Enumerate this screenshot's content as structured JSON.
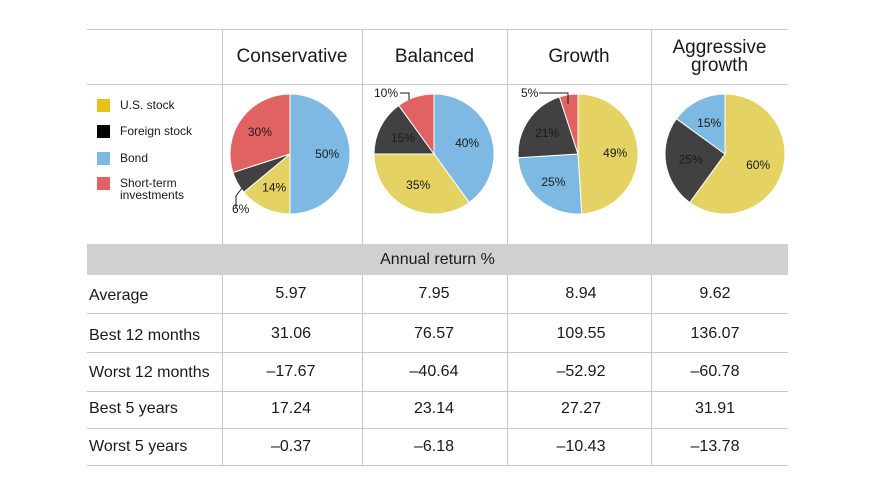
{
  "chart_data": {
    "type": "pie",
    "columns": [
      "Conservative",
      "Balanced",
      "Growth",
      "Aggressive\ngrowth"
    ],
    "legend": [
      {
        "name": "U.S. stock",
        "color": "#e4d262"
      },
      {
        "name": "Foreign stock",
        "color": "#000000"
      },
      {
        "name": "Bond",
        "color": "#7db9e2"
      },
      {
        "name": "Short-term\ninvestments",
        "color": "#e06262"
      }
    ],
    "slice_colors": {
      "us": "#e4d262",
      "foreign": "#414141",
      "bond": "#7db9e2",
      "short": "#e06262"
    },
    "pies": [
      {
        "name": "Conservative",
        "slices": [
          {
            "key": "bond",
            "value": 50,
            "label": "50%"
          },
          {
            "key": "us",
            "value": 14,
            "label": "14%"
          },
          {
            "key": "foreign",
            "value": 6,
            "label": "6%"
          },
          {
            "key": "short",
            "value": 30,
            "label": "30%"
          }
        ]
      },
      {
        "name": "Balanced",
        "slices": [
          {
            "key": "bond",
            "value": 40,
            "label": "40%"
          },
          {
            "key": "us",
            "value": 35,
            "label": "35%"
          },
          {
            "key": "foreign",
            "value": 15,
            "label": "15%"
          },
          {
            "key": "short",
            "value": 10,
            "label": "10%"
          }
        ]
      },
      {
        "name": "Growth",
        "slices": [
          {
            "key": "us",
            "value": 49,
            "label": "49%"
          },
          {
            "key": "bond",
            "value": 25,
            "label": "25%"
          },
          {
            "key": "foreign",
            "value": 21,
            "label": "21%"
          },
          {
            "key": "short",
            "value": 5,
            "label": "5%"
          }
        ]
      },
      {
        "name": "Aggressive growth",
        "slices": [
          {
            "key": "us",
            "value": 60,
            "label": "60%"
          },
          {
            "key": "foreign",
            "value": 25,
            "label": "25%"
          },
          {
            "key": "bond",
            "value": 15,
            "label": "15%"
          }
        ]
      }
    ],
    "table": {
      "title": "Annual return %",
      "rows": [
        {
          "label": "Average",
          "values": [
            "5.97",
            "7.95",
            "8.94",
            "9.62"
          ]
        },
        {
          "label": "Best 12 months",
          "values": [
            "31.06",
            "76.57",
            "109.55",
            "136.07"
          ]
        },
        {
          "label": "Worst 12 months",
          "values": [
            "–17.67",
            "–40.64",
            "–52.92",
            "–60.78"
          ]
        },
        {
          "label": "Best 5 years",
          "values": [
            "17.24",
            "23.14",
            "27.27",
            "31.91"
          ]
        },
        {
          "label": "Worst 5 years",
          "values": [
            "–0.37",
            "–6.18",
            "–10.43",
            "–13.78"
          ]
        }
      ]
    }
  }
}
